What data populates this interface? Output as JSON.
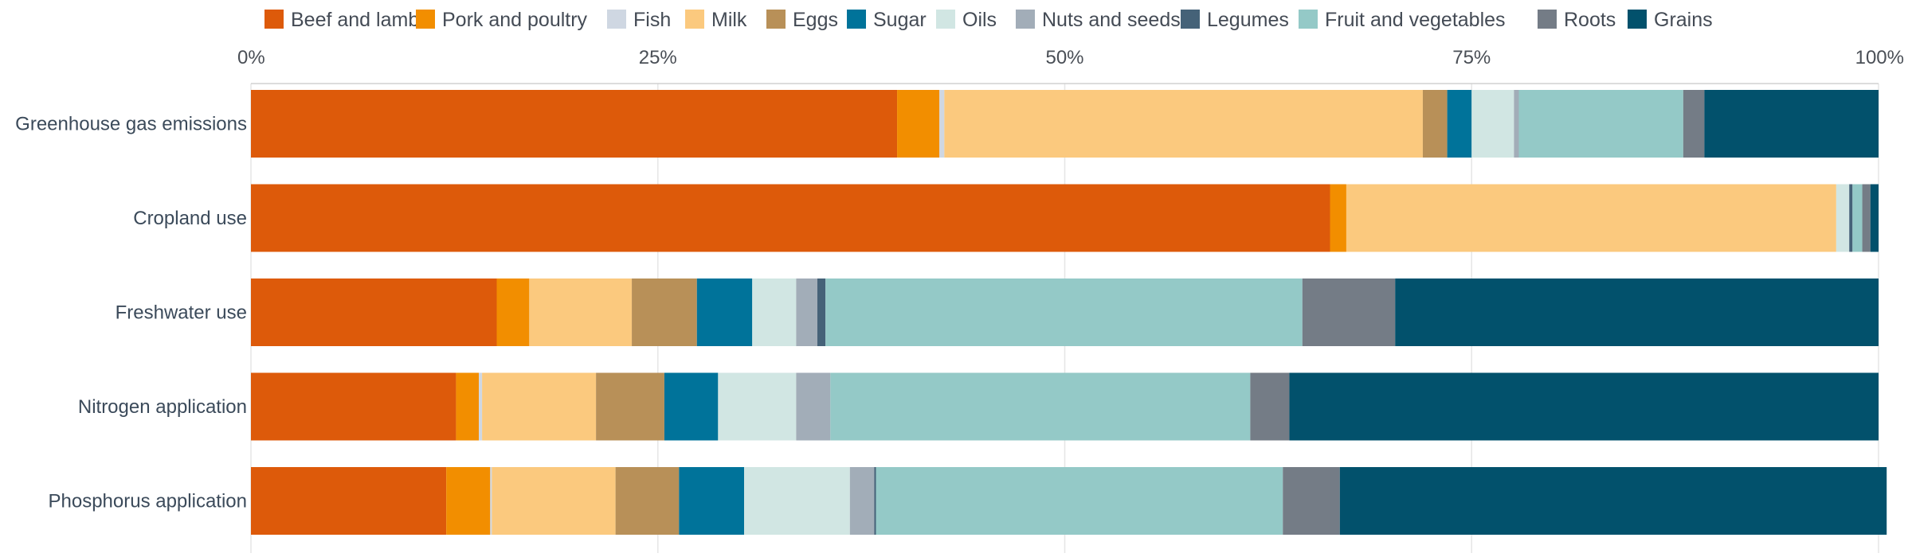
{
  "chart_data": {
    "type": "bar",
    "orientation": "horizontal",
    "stacked": true,
    "relative": true,
    "title": "",
    "xlabel": "",
    "ylabel": "",
    "xlim": [
      0,
      100
    ],
    "x_ticks": [
      "0%",
      "25%",
      "50%",
      "75%",
      "100%"
    ],
    "grid": true,
    "legend_position": "top",
    "categories": [
      "Greenhouse gas emissions",
      "Cropland use",
      "Freshwater use",
      "Nitrogen application",
      "Phosphorus application"
    ],
    "series": [
      {
        "name": "Beef and lamb",
        "color": "#dd5a0a",
        "values": [
          39.7,
          66.3,
          15.1,
          12.6,
          12.0
        ]
      },
      {
        "name": "Pork and poultry",
        "color": "#f28e00",
        "values": [
          2.6,
          1.0,
          2.0,
          1.4,
          2.7
        ]
      },
      {
        "name": "Fish",
        "color": "#cfd7e2",
        "values": [
          0.3,
          0.0,
          0.0,
          0.2,
          0.1
        ]
      },
      {
        "name": "Milk",
        "color": "#fbc97e",
        "values": [
          29.4,
          30.1,
          6.3,
          7.0,
          7.6
        ]
      },
      {
        "name": "Eggs",
        "color": "#b89058",
        "values": [
          1.5,
          0.0,
          4.0,
          4.2,
          3.9
        ]
      },
      {
        "name": "Sugar",
        "color": "#00739a",
        "values": [
          1.5,
          0.0,
          3.4,
          3.3,
          4.0
        ]
      },
      {
        "name": "Oils",
        "color": "#d1e6e3",
        "values": [
          2.6,
          0.8,
          2.7,
          4.8,
          6.5
        ]
      },
      {
        "name": "Nuts and seeds",
        "color": "#a2adb8",
        "values": [
          0.3,
          0.0,
          1.3,
          2.1,
          1.5
        ]
      },
      {
        "name": "Legumes",
        "color": "#456278",
        "values": [
          0.0,
          0.2,
          0.5,
          0.0,
          0.1
        ]
      },
      {
        "name": "Fruit and vegetables",
        "color": "#94c9c7",
        "values": [
          10.1,
          0.6,
          29.3,
          25.8,
          25.0
        ]
      },
      {
        "name": "Roots",
        "color": "#747c86",
        "values": [
          1.3,
          0.5,
          5.7,
          2.4,
          3.5
        ]
      },
      {
        "name": "Grains",
        "color": "#02516c",
        "values": [
          10.7,
          0.5,
          29.7,
          36.2,
          33.6
        ]
      }
    ]
  }
}
